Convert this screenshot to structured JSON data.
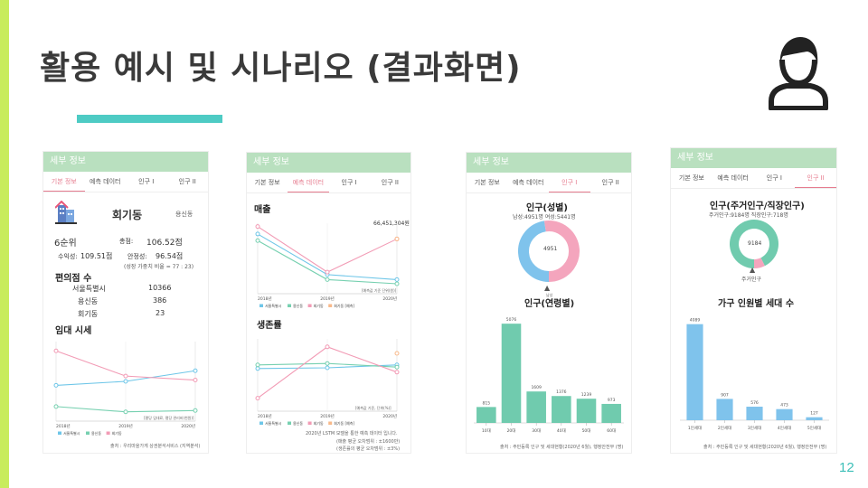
{
  "slide": {
    "title": "활용 예시 및 시나리오 (결과화면)",
    "page_number": "12",
    "accent_color": "#4ecbc4",
    "leftbar_color": "#c8ec5c"
  },
  "tabs": [
    "기본 정보",
    "예측 데이터",
    "인구 I",
    "인구 II"
  ],
  "panel1": {
    "header": "세부 정보",
    "active_tab": 0,
    "district": "회기동",
    "parent_area": "용신동",
    "rank": "6순위",
    "total_label": "총점:",
    "total_value": "106.52점",
    "profit_label": "수익성:",
    "profit_value": "109.51점",
    "stability_label": "안정성:",
    "stability_value": "96.54점",
    "weight_note": "(성장 가중치 비율 = 77 : 23)",
    "conv_title": "편의점 수",
    "conv_rows": [
      {
        "name": "서울특별시",
        "value": "10366"
      },
      {
        "name": "용신동",
        "value": "386"
      },
      {
        "name": "회기동",
        "value": "23"
      }
    ],
    "rent_title": "임대 시세",
    "chart_note": "[평당 임대료, 평당 관리비(천원)]",
    "source": "출처 : 우리마을가게 상권분석서비스 (지역분석)"
  },
  "panel2": {
    "header": "세부 정보",
    "active_tab": 1,
    "sales_title": "매출",
    "sales_top_value": "66,451,304원",
    "sales_note": "[예측값 기준 단위(원)]",
    "survival_title": "생존률",
    "survival_note": "[예측값 기준, 단위(%)]",
    "footnote_lines": [
      "2020년 LSTM 모델을 통한 예측 데이터 입니다.",
      "(매출 평균 오차범위 : ±1600만)",
      "(생존률의 평균 오차범위 : ±3%)"
    ]
  },
  "panel3": {
    "header": "세부 정보",
    "active_tab": 2,
    "gender_title": "인구(성별)",
    "gender_sub": "남성:4951명  여성:5441명",
    "donut_center": "4951",
    "donut_marker_label": "남성",
    "age_title": "인구(연령별)",
    "source": "출처 : 주민등록 인구 및 세대현황(2020년 6월), 행정안전부 (명)"
  },
  "panel4": {
    "header": "세부 정보",
    "active_tab": 3,
    "title": "인구(주거인구/직장인구)",
    "sub": "주거인구:9184명  직장인구:718명",
    "donut_center": "9184",
    "donut_marker_label": "주거인구",
    "household_title": "가구 인원별 세대 수",
    "source": "출처 : 주민등록 인구 및 세대현황(2020년 6월), 행정안전부 (명)"
  },
  "chart_data": [
    {
      "type": "line",
      "title": "임대 시세",
      "x": [
        "2018년",
        "2019년",
        "2020년"
      ],
      "series": [
        {
          "name": "서울특별시",
          "color": "#6ec6e8",
          "values": [
            52,
            55,
            63
          ]
        },
        {
          "name": "용신동",
          "color": "#76d0b0",
          "values": [
            36,
            32,
            33
          ]
        },
        {
          "name": "회기동",
          "color": "#f29bb5",
          "values": [
            78,
            59,
            56
          ]
        }
      ],
      "ylim": [
        25,
        85
      ]
    },
    {
      "type": "line",
      "title": "매출",
      "x": [
        "2018년",
        "2019년",
        "2020년"
      ],
      "series": [
        {
          "name": "서울특별시",
          "color": "#6ec6e8",
          "values": [
            72,
            23,
            17
          ]
        },
        {
          "name": "용신동",
          "color": "#76d0b0",
          "values": [
            64,
            17,
            12
          ]
        },
        {
          "name": "회기동",
          "color": "#f29bb5",
          "values": [
            81,
            26,
            66
          ]
        },
        {
          "name": "회기동 [예측]",
          "color": "#f8b98a",
          "values": [
            null,
            null,
            66
          ]
        }
      ],
      "ylim": [
        0,
        85
      ]
    },
    {
      "type": "line",
      "title": "생존률",
      "x": [
        "2018년",
        "2019년",
        "2020년"
      ],
      "series": [
        {
          "name": "서울특별시",
          "color": "#6ec6e8",
          "values": [
            59,
            60,
            64
          ]
        },
        {
          "name": "용신동",
          "color": "#76d0b0",
          "values": [
            64,
            66,
            61
          ]
        },
        {
          "name": "회기동",
          "color": "#f29bb5",
          "values": [
            18,
            89,
            54
          ]
        },
        {
          "name": "회기동 [예측]",
          "color": "#f8b98a",
          "values": [
            null,
            null,
            80
          ]
        }
      ],
      "ylim": [
        0,
        100
      ]
    },
    {
      "type": "pie",
      "title": "인구(성별)",
      "categories": [
        "남성",
        "여성"
      ],
      "values": [
        4951,
        5441
      ],
      "colors": [
        "#7fc3ec",
        "#f4a5bd"
      ]
    },
    {
      "type": "bar",
      "title": "인구(연령별)",
      "categories": [
        "10대",
        "20대",
        "30대",
        "40대",
        "50대",
        "60대"
      ],
      "values": [
        815,
        5076,
        1609,
        1376,
        1239,
        973
      ],
      "ylim": [
        0,
        5500
      ],
      "color": "#70cbae"
    },
    {
      "type": "pie",
      "title": "인구(주거인구/직장인구)",
      "categories": [
        "주거인구",
        "직장인구"
      ],
      "values": [
        9184,
        718
      ],
      "colors": [
        "#70cbae",
        "#f4a5bd"
      ]
    },
    {
      "type": "bar",
      "title": "가구 인원별 세대 수",
      "categories": [
        "1인세대",
        "2인세대",
        "3인세대",
        "4인세대",
        "5인세대"
      ],
      "values": [
        4089,
        907,
        576,
        473,
        127
      ],
      "ylim": [
        0,
        4500
      ],
      "color": "#7fc3ec"
    }
  ]
}
